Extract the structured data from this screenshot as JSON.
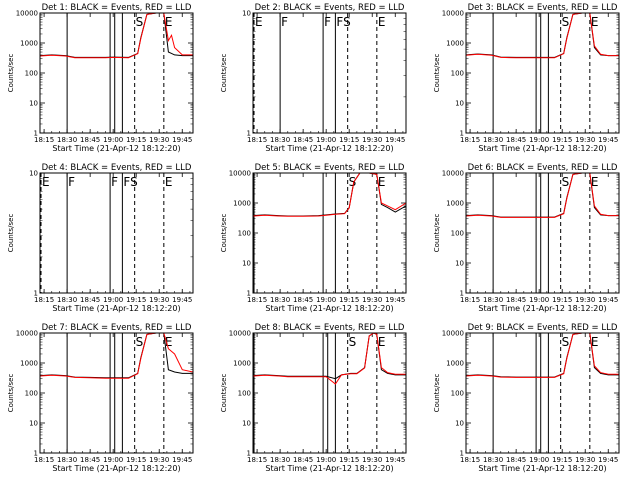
{
  "figure": {
    "colors": {
      "events": "#000000",
      "lld": "#ff0000",
      "background": "#ffffff"
    }
  },
  "chart_data": [
    {
      "type": "line",
      "title": "Det 1: BLACK = Events, RED = LLD",
      "xlabel": "Start Time (21-Apr-12 18:12:20)",
      "ylabel": "Counts/sec",
      "yscale": "log",
      "ylim": [
        1,
        10000
      ],
      "y_ticks": [
        "1",
        "10",
        "100",
        "1000",
        "10000"
      ],
      "xlim": [
        "18:12:20",
        "19:52:00"
      ],
      "x_ticks": [
        "18:15",
        "18:30",
        "18:45",
        "19:00",
        "19:15",
        "19:30",
        "19:45"
      ],
      "x": [
        "18:12:20",
        "18:20",
        "18:29",
        "18:35",
        "18:45",
        "18:55",
        "19:00",
        "19:10",
        "19:16",
        "19:18",
        "19:22",
        "19:28",
        "19:33",
        "19:36",
        "19:38",
        "19:40",
        "19:45",
        "19:52"
      ],
      "series": [
        {
          "values": [
            380,
            400,
            380,
            330,
            330,
            330,
            340,
            330,
            450,
            1500,
            9000,
            10000,
            10000,
            500,
            450,
            400,
            380,
            380
          ]
        },
        {
          "values": [
            370,
            390,
            370,
            320,
            320,
            320,
            330,
            320,
            440,
            1400,
            9000,
            10000,
            10000,
            1200,
            1800,
            700,
            400,
            400
          ]
        }
      ],
      "annotations": [
        {
          "x": "18:30",
          "text": ""
        },
        {
          "x": "18:58",
          "text": ""
        },
        {
          "x": "19:01",
          "text": ""
        },
        {
          "x": "19:06",
          "text": ""
        },
        {
          "x": "19:14",
          "text": "S"
        },
        {
          "x": "19:33",
          "text": "E"
        }
      ],
      "has_data": true
    },
    {
      "type": "line",
      "title": "Det 2: BLACK = Events, RED = LLD",
      "xlabel": "Start Time (21-Apr-12 18:12:20)",
      "ylabel": "Counts/sec",
      "yscale": "log",
      "ylim": [
        1,
        10
      ],
      "y_ticks": [
        "1",
        "10"
      ],
      "xlim": [
        "18:12:20",
        "19:52:00"
      ],
      "x_ticks": [
        "18:15",
        "18:30",
        "18:45",
        "19:00",
        "19:15",
        "19:30",
        "19:45"
      ],
      "x": [],
      "series": [],
      "annotations": [
        {
          "x": "18:13",
          "text": "E"
        },
        {
          "x": "18:30",
          "text": "F"
        },
        {
          "x": "18:58",
          "text": "F"
        },
        {
          "x": "19:06",
          "text": "FS"
        },
        {
          "x": "19:14",
          "text": ""
        },
        {
          "x": "19:33",
          "text": "E"
        }
      ],
      "has_data": false
    },
    {
      "type": "line",
      "title": "Det 3: BLACK = Events, RED = LLD",
      "xlabel": "Start Time (21-Apr-12 18:12:20)",
      "ylabel": "Counts/sec",
      "yscale": "log",
      "ylim": [
        1,
        10000
      ],
      "y_ticks": [
        "1",
        "10",
        "100",
        "1000",
        "10000"
      ],
      "xlim": [
        "18:12:20",
        "19:52:00"
      ],
      "x_ticks": [
        "18:15",
        "18:30",
        "18:45",
        "19:00",
        "19:15",
        "19:30",
        "19:45"
      ],
      "x": [
        "18:12:20",
        "18:20",
        "18:29",
        "18:35",
        "18:45",
        "18:55",
        "19:00",
        "19:10",
        "19:16",
        "19:18",
        "19:22",
        "19:28",
        "19:33",
        "19:36",
        "19:40",
        "19:45",
        "19:52"
      ],
      "series": [
        {
          "values": [
            400,
            430,
            400,
            340,
            330,
            330,
            330,
            330,
            450,
            1500,
            9000,
            10000,
            10000,
            700,
            400,
            380,
            380
          ]
        },
        {
          "values": [
            390,
            420,
            390,
            330,
            320,
            320,
            320,
            320,
            440,
            1400,
            9000,
            10000,
            10000,
            800,
            420,
            380,
            380
          ]
        }
      ],
      "annotations": [
        {
          "x": "18:30",
          "text": ""
        },
        {
          "x": "18:58",
          "text": ""
        },
        {
          "x": "19:01",
          "text": ""
        },
        {
          "x": "19:06",
          "text": ""
        },
        {
          "x": "19:14",
          "text": "S"
        },
        {
          "x": "19:33",
          "text": "E"
        }
      ],
      "has_data": true
    },
    {
      "type": "line",
      "title": "Det 4: BLACK = Events, RED = LLD",
      "xlabel": "Start Time (21-Apr-12 18:12:20)",
      "ylabel": "Counts/sec",
      "yscale": "log",
      "ylim": [
        1,
        10
      ],
      "y_ticks": [
        "1",
        "10"
      ],
      "xlim": [
        "18:12:20",
        "19:52:00"
      ],
      "x_ticks": [
        "18:15",
        "18:30",
        "18:45",
        "19:00",
        "19:15",
        "19:30",
        "19:45"
      ],
      "x": [],
      "series": [],
      "annotations": [
        {
          "x": "18:13",
          "text": "E"
        },
        {
          "x": "18:30",
          "text": "F"
        },
        {
          "x": "18:58",
          "text": "F"
        },
        {
          "x": "19:06",
          "text": "FS"
        },
        {
          "x": "19:14",
          "text": ""
        },
        {
          "x": "19:33",
          "text": "E"
        }
      ],
      "has_data": false
    },
    {
      "type": "line",
      "title": "Det 5: BLACK = Events, RED = LLD",
      "xlabel": "Start Time (21-Apr-12 18:12:20)",
      "ylabel": "Counts/sec",
      "yscale": "log",
      "ylim": [
        1,
        10000
      ],
      "y_ticks": [
        "1",
        "10",
        "100",
        "1000",
        "10000"
      ],
      "xlim": [
        "18:12:20",
        "19:52:00"
      ],
      "x_ticks": [
        "18:15",
        "18:30",
        "18:45",
        "19:00",
        "19:15",
        "19:30",
        "19:45"
      ],
      "x": [
        "18:12:20",
        "18:20",
        "18:29",
        "18:35",
        "18:45",
        "18:55",
        "19:00",
        "19:06",
        "19:12",
        "19:15",
        "19:18",
        "19:22",
        "19:28",
        "19:33",
        "19:36",
        "19:40",
        "19:45",
        "19:52"
      ],
      "series": [
        {
          "values": [
            380,
            400,
            380,
            370,
            370,
            380,
            400,
            430,
            450,
            700,
            5000,
            10000,
            10000,
            9000,
            900,
            700,
            500,
            800
          ]
        },
        {
          "values": [
            370,
            390,
            370,
            360,
            360,
            370,
            390,
            420,
            440,
            680,
            5000,
            10000,
            10000,
            9000,
            1000,
            800,
            600,
            1000
          ]
        }
      ],
      "annotations": [
        {
          "x": "18:13",
          "text": ""
        },
        {
          "x": "18:58",
          "text": ""
        },
        {
          "x": "19:06",
          "text": ""
        },
        {
          "x": "19:14",
          "text": "S"
        },
        {
          "x": "19:33",
          "text": "E"
        }
      ],
      "has_data": true
    },
    {
      "type": "line",
      "title": "Det 6: BLACK = Events, RED = LLD",
      "xlabel": "Start Time (21-Apr-12 18:12:20)",
      "ylabel": "Counts/sec",
      "yscale": "log",
      "ylim": [
        1,
        10000
      ],
      "y_ticks": [
        "1",
        "10",
        "100",
        "1000",
        "10000"
      ],
      "xlim": [
        "18:12:20",
        "19:52:00"
      ],
      "x_ticks": [
        "18:15",
        "18:30",
        "18:45",
        "19:00",
        "19:15",
        "19:30",
        "19:45"
      ],
      "x": [
        "18:12:20",
        "18:20",
        "18:29",
        "18:35",
        "18:45",
        "18:55",
        "19:00",
        "19:10",
        "19:16",
        "19:18",
        "19:22",
        "19:28",
        "19:33",
        "19:36",
        "19:40",
        "19:45",
        "19:52"
      ],
      "series": [
        {
          "values": [
            380,
            400,
            380,
            340,
            340,
            340,
            340,
            340,
            450,
            1500,
            9000,
            10000,
            10000,
            700,
            400,
            380,
            380
          ]
        },
        {
          "values": [
            370,
            390,
            370,
            330,
            330,
            330,
            330,
            330,
            440,
            1400,
            9000,
            10000,
            10000,
            800,
            420,
            380,
            380
          ]
        }
      ],
      "annotations": [
        {
          "x": "18:30",
          "text": ""
        },
        {
          "x": "18:58",
          "text": ""
        },
        {
          "x": "19:01",
          "text": ""
        },
        {
          "x": "19:06",
          "text": ""
        },
        {
          "x": "19:14",
          "text": "S"
        },
        {
          "x": "19:33",
          "text": "E"
        }
      ],
      "has_data": true
    },
    {
      "type": "line",
      "title": "Det 7: BLACK = Events, RED = LLD",
      "xlabel": "Start Time (21-Apr-12 18:12:20)",
      "ylabel": "Counts/sec",
      "yscale": "log",
      "ylim": [
        1,
        10000
      ],
      "y_ticks": [
        "1",
        "10",
        "100",
        "1000",
        "10000"
      ],
      "xlim": [
        "18:12:20",
        "19:52:00"
      ],
      "x_ticks": [
        "18:15",
        "18:30",
        "18:45",
        "19:00",
        "19:15",
        "19:30",
        "19:45"
      ],
      "x": [
        "18:12:20",
        "18:20",
        "18:29",
        "18:35",
        "18:45",
        "18:55",
        "19:00",
        "19:10",
        "19:16",
        "19:18",
        "19:22",
        "19:28",
        "19:33",
        "19:36",
        "19:40",
        "19:45",
        "19:52"
      ],
      "series": [
        {
          "values": [
            380,
            400,
            380,
            340,
            330,
            320,
            320,
            320,
            450,
            1500,
            9000,
            10000,
            10000,
            600,
            500,
            450,
            450
          ]
        },
        {
          "values": [
            370,
            390,
            370,
            330,
            320,
            310,
            310,
            310,
            440,
            1400,
            9000,
            10000,
            10000,
            3000,
            2000,
            600,
            500
          ]
        }
      ],
      "annotations": [
        {
          "x": "18:30",
          "text": ""
        },
        {
          "x": "18:58",
          "text": ""
        },
        {
          "x": "19:01",
          "text": ""
        },
        {
          "x": "19:06",
          "text": ""
        },
        {
          "x": "19:14",
          "text": "S"
        },
        {
          "x": "19:33",
          "text": "E"
        }
      ],
      "has_data": true
    },
    {
      "type": "line",
      "title": "Det 8: BLACK = Events, RED = LLD",
      "xlabel": "Start Time (21-Apr-12 18:12:20)",
      "ylabel": "Counts/sec",
      "yscale": "log",
      "ylim": [
        1,
        10000
      ],
      "y_ticks": [
        "1",
        "10",
        "100",
        "1000",
        "10000"
      ],
      "xlim": [
        "18:12:20",
        "19:52:00"
      ],
      "x_ticks": [
        "18:15",
        "18:30",
        "18:45",
        "19:00",
        "19:15",
        "19:30",
        "19:45"
      ],
      "x": [
        "18:12:20",
        "18:20",
        "18:29",
        "18:35",
        "18:45",
        "18:55",
        "19:00",
        "19:06",
        "19:10",
        "19:16",
        "19:20",
        "19:25",
        "19:28",
        "19:31",
        "19:33",
        "19:36",
        "19:40",
        "19:45",
        "19:52"
      ],
      "series": [
        {
          "values": [
            380,
            400,
            380,
            360,
            360,
            360,
            360,
            300,
            400,
            450,
            450,
            700,
            8000,
            10000,
            9000,
            600,
            450,
            400,
            400
          ]
        },
        {
          "values": [
            370,
            390,
            370,
            350,
            350,
            350,
            350,
            200,
            400,
            440,
            440,
            680,
            8000,
            10000,
            9000,
            700,
            480,
            420,
            420
          ]
        }
      ],
      "annotations": [
        {
          "x": "18:13",
          "text": ""
        },
        {
          "x": "18:58",
          "text": ""
        },
        {
          "x": "19:01",
          "text": ""
        },
        {
          "x": "19:06",
          "text": ""
        },
        {
          "x": "19:14",
          "text": "S"
        },
        {
          "x": "19:33",
          "text": "E"
        }
      ],
      "has_data": true
    },
    {
      "type": "line",
      "title": "Det 9: BLACK = Events, RED = LLD",
      "xlabel": "Start Time (21-Apr-12 18:12:20)",
      "ylabel": "Counts/sec",
      "yscale": "log",
      "ylim": [
        1,
        10000
      ],
      "y_ticks": [
        "1",
        "10",
        "100",
        "1000",
        "10000"
      ],
      "xlim": [
        "18:12:20",
        "19:52:00"
      ],
      "x_ticks": [
        "18:15",
        "18:30",
        "18:45",
        "19:00",
        "19:15",
        "19:30",
        "19:45"
      ],
      "x": [
        "18:12:20",
        "18:20",
        "18:29",
        "18:35",
        "18:45",
        "18:55",
        "19:00",
        "19:10",
        "19:16",
        "19:18",
        "19:22",
        "19:28",
        "19:33",
        "19:36",
        "19:40",
        "19:45",
        "19:52"
      ],
      "series": [
        {
          "values": [
            380,
            400,
            380,
            350,
            340,
            340,
            340,
            340,
            450,
            1500,
            9000,
            10000,
            10000,
            700,
            450,
            400,
            400
          ]
        },
        {
          "values": [
            370,
            390,
            370,
            340,
            330,
            330,
            330,
            330,
            440,
            1400,
            9000,
            10000,
            10000,
            800,
            480,
            420,
            420
          ]
        }
      ],
      "annotations": [
        {
          "x": "18:30",
          "text": ""
        },
        {
          "x": "18:58",
          "text": ""
        },
        {
          "x": "19:01",
          "text": ""
        },
        {
          "x": "19:06",
          "text": ""
        },
        {
          "x": "19:14",
          "text": "S"
        },
        {
          "x": "19:33",
          "text": "E"
        }
      ],
      "has_data": true
    }
  ]
}
